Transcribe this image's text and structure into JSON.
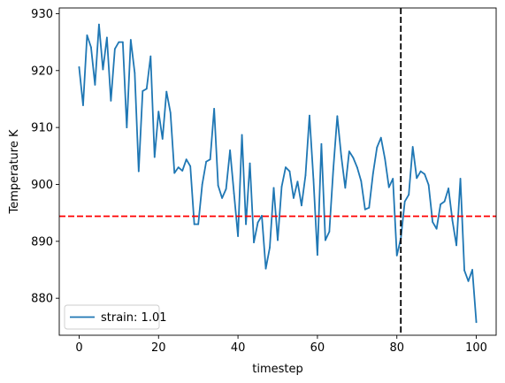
{
  "chart_data": {
    "type": "line",
    "title": "",
    "xlabel": "timestep",
    "ylabel": "Temperature K",
    "xlim": [
      -5,
      105
    ],
    "ylim": [
      873.5,
      931
    ],
    "xticks": [
      0,
      20,
      40,
      60,
      80,
      100
    ],
    "yticks": [
      880,
      890,
      900,
      910,
      920,
      930
    ],
    "grid": false,
    "legend_position": "lower-left",
    "series": [
      {
        "name": "strain: 1.01",
        "color": "#1f77b4",
        "x": [
          0,
          1,
          2,
          3,
          4,
          5,
          6,
          7,
          8,
          9,
          10,
          11,
          12,
          13,
          14,
          15,
          16,
          17,
          18,
          19,
          20,
          21,
          22,
          23,
          24,
          25,
          26,
          27,
          28,
          29,
          30,
          31,
          32,
          33,
          34,
          35,
          36,
          37,
          38,
          39,
          40,
          41,
          42,
          43,
          44,
          45,
          46,
          47,
          48,
          49,
          50,
          51,
          52,
          53,
          54,
          55,
          56,
          57,
          58,
          59,
          60,
          61,
          62,
          63,
          64,
          65,
          66,
          67,
          68,
          69,
          70,
          71,
          72,
          73,
          74,
          75,
          76,
          77,
          78,
          79,
          80,
          81,
          82,
          83,
          84,
          85,
          86,
          87,
          88,
          89,
          90,
          91,
          92,
          93,
          94,
          95,
          96,
          97,
          98,
          99,
          100
        ],
        "y": [
          920.6,
          913.9,
          926.2,
          924.1,
          917.5,
          928.1,
          920.2,
          925.8,
          914.7,
          923.8,
          925.0,
          925.0,
          910.0,
          925.4,
          919.6,
          902.3,
          916.4,
          916.8,
          922.5,
          904.8,
          912.8,
          908.0,
          916.3,
          912.6,
          902.0,
          903.0,
          902.4,
          904.4,
          903.2,
          893.0,
          893.0,
          900.0,
          904.0,
          904.4,
          913.3,
          899.8,
          897.6,
          899.2,
          906.0,
          898.4,
          890.9,
          908.7,
          893.0,
          903.7,
          889.8,
          893.3,
          894.5,
          885.2,
          888.9,
          899.4,
          890.2,
          899.6,
          903.0,
          902.3,
          897.6,
          900.5,
          896.3,
          901.6,
          912.1,
          900.9,
          887.6,
          907.1,
          890.2,
          891.7,
          902.7,
          912.0,
          905.0,
          899.4,
          905.8,
          904.7,
          903.0,
          900.6,
          895.6,
          895.9,
          901.9,
          906.5,
          908.2,
          904.5,
          899.5,
          901.0,
          887.5,
          890.5,
          897.0,
          898.2,
          906.6,
          901.1,
          902.3,
          901.8,
          899.9,
          893.4,
          892.2,
          896.5,
          897.0,
          899.3,
          893.6,
          889.3,
          901.0,
          884.9,
          883.0,
          885.0,
          875.8
        ]
      }
    ],
    "reference_lines": [
      {
        "orientation": "horizontal",
        "value": 894.4,
        "color": "#ff0000",
        "style": "dashed"
      },
      {
        "orientation": "vertical",
        "value": 81,
        "color": "#000000",
        "style": "dashed"
      }
    ]
  }
}
